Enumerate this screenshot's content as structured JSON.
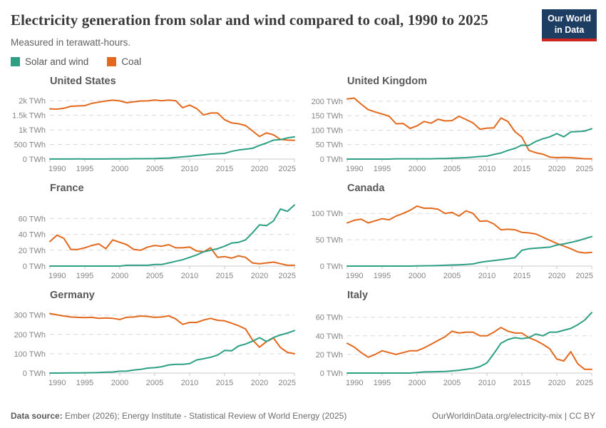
{
  "header": {
    "title": "Electricity generation from solar and wind compared to coal, 1990 to 2025",
    "subtitle": "Measured in terawatt-hours.",
    "logo_line1": "Our World",
    "logo_line2": "in Data",
    "logo_bg_color": "#1d3d63",
    "logo_stripe_color": "#cf2520"
  },
  "legend": [
    {
      "label": "Solar and wind",
      "color": "#2da084"
    },
    {
      "label": "Coal",
      "color": "#e2691d"
    }
  ],
  "footer": {
    "source_label": "Data source:",
    "source_text": "Ember (2026); Energy Institute - Statistical Review of World Energy (2025)",
    "link_text": "OurWorldinData.org/electricity-mix",
    "license_text": " | CC BY"
  },
  "chart_data": {
    "type": "line",
    "title": "Electricity generation from solar and wind compared to coal, 1990 to 2025",
    "subtitle": "Measured in terawatt-hours.",
    "unit": "TWh",
    "grid": "dashed-horizontal",
    "legend_position": "top-left",
    "x_range": [
      1990,
      2025
    ],
    "x_ticks": [
      1990,
      1995,
      2000,
      2005,
      2010,
      2015,
      2020,
      2025
    ],
    "years": [
      1990,
      1991,
      1992,
      1993,
      1994,
      1995,
      1996,
      1997,
      1998,
      1999,
      2000,
      2001,
      2002,
      2003,
      2004,
      2005,
      2006,
      2007,
      2008,
      2009,
      2010,
      2011,
      2012,
      2013,
      2014,
      2015,
      2016,
      2017,
      2018,
      2019,
      2020,
      2021,
      2022,
      2023,
      2024,
      2025
    ],
    "series_colors": {
      "Solar and wind": "#2da084",
      "Coal": "#e2691d"
    },
    "panels": [
      {
        "name": "United States",
        "y_ticks": [
          0,
          500,
          1000,
          1500,
          2000
        ],
        "y_tick_labels": [
          "0 TWh",
          "500 TWh",
          "1k TWh",
          "1.5k TWh",
          "2k TWh"
        ],
        "y_plot_max": 2200,
        "series": [
          {
            "name": "Coal",
            "values": [
              1720,
              1710,
              1740,
              1810,
              1820,
              1830,
              1910,
              1950,
              1990,
              2020,
              1995,
              1930,
              1960,
              1990,
              1995,
              2025,
              2000,
              2025,
              2000,
              1760,
              1850,
              1730,
              1510,
              1580,
              1580,
              1350,
              1240,
              1210,
              1150,
              965,
              773,
              898,
              830,
              675,
              650,
              640
            ]
          },
          {
            "name": "Solar and wind",
            "values": [
              3,
              3,
              3,
              3,
              4,
              3,
              3,
              3,
              3,
              5,
              6,
              7,
              11,
              11,
              14,
              18,
              27,
              35,
              57,
              75,
              96,
              122,
              145,
              172,
              184,
              195,
              264,
              310,
              340,
              370,
              470,
              550,
              650,
              665,
              725,
              760
            ]
          }
        ]
      },
      {
        "name": "United Kingdom",
        "y_ticks": [
          0,
          50,
          100,
          150,
          200
        ],
        "y_tick_labels": [
          "0 TWh",
          "50 TWh",
          "100 TWh",
          "150 TWh",
          "200 TWh"
        ],
        "y_plot_max": 222,
        "series": [
          {
            "name": "Coal",
            "values": [
              208,
              211,
              190,
              171,
              163,
              156,
              148,
              122,
              123,
              106,
              115,
              130,
              124,
              138,
              132,
              133,
              148,
              137,
              125,
              103,
              107,
              108,
              142,
              130,
              95,
              76,
              30,
              22,
              17,
              7,
              5,
              6,
              5,
              3,
              1,
              1
            ]
          },
          {
            "name": "Solar and wind",
            "values": [
              0,
              0,
              0,
              0,
              0,
              0,
              0,
              1,
              1,
              1,
              1,
              1,
              1,
              2,
              2,
              3,
              4,
              5,
              7,
              9,
              10,
              16,
              21,
              30,
              37,
              48,
              47,
              61,
              70,
              77,
              88,
              77,
              94,
              95,
              97,
              105
            ]
          }
        ]
      },
      {
        "name": "France",
        "y_ticks": [
          0,
          20,
          40,
          60
        ],
        "y_tick_labels": [
          "0 TWh",
          "20 TWh",
          "40 TWh",
          "60 TWh"
        ],
        "y_plot_max": 81,
        "series": [
          {
            "name": "Coal",
            "values": [
              31,
              39,
              35,
              21,
              21,
              23,
              26,
              28,
              22,
              33,
              30,
              27,
              21,
              20,
              24,
              26,
              25,
              27,
              23,
              23,
              24,
              19,
              18,
              23,
              11,
              12,
              10,
              13,
              11,
              4,
              3,
              4,
              5,
              3,
              1,
              1
            ]
          },
          {
            "name": "Solar and wind",
            "values": [
              0,
              0,
              0,
              0,
              0,
              0,
              0,
              0,
              0,
              0,
              0,
              1,
              1,
              1,
              1,
              2,
              2,
              4,
              6,
              8,
              11,
              14,
              18,
              20,
              22,
              25,
              29,
              30,
              33,
              42,
              52,
              51,
              57,
              72,
              69,
              77
            ]
          }
        ]
      },
      {
        "name": "Canada",
        "y_ticks": [
          0,
          50,
          100
        ],
        "y_tick_labels": [
          "0 TWh",
          "50 TWh",
          "100 TWh"
        ],
        "y_plot_max": 122,
        "series": [
          {
            "name": "Coal",
            "values": [
              82,
              87,
              89,
              82,
              86,
              90,
              88,
              95,
              100,
              106,
              114,
              110,
              110,
              108,
              100,
              102,
              95,
              105,
              100,
              85,
              86,
              80,
              69,
              70,
              69,
              64,
              63,
              61,
              55,
              49,
              43,
              38,
              33,
              27,
              25,
              26
            ]
          },
          {
            "name": "Solar and wind",
            "values": [
              0,
              0,
              0,
              0,
              0,
              0,
              0,
              0,
              0,
              0,
              0.3,
              0.5,
              0.7,
              1,
              1.5,
              2,
              2.5,
              3,
              4,
              7,
              9,
              10.5,
              12,
              14,
              16,
              30,
              33,
              34,
              35,
              36,
              40,
              42,
              45,
              48,
              52,
              56
            ]
          }
        ]
      },
      {
        "name": "Germany",
        "y_ticks": [
          0,
          100,
          200,
          300
        ],
        "y_tick_labels": [
          "0 TWh",
          "100 TWh",
          "200 TWh",
          "300 TWh"
        ],
        "y_plot_max": 332,
        "series": [
          {
            "name": "Coal",
            "values": [
              308,
              301,
              295,
              290,
              288,
              287,
              288,
              283,
              285,
              283,
              277,
              289,
              290,
              295,
              293,
              288,
              290,
              296,
              280,
              252,
              262,
              262,
              274,
              283,
              273,
              270,
              258,
              245,
              228,
              171,
              134,
              163,
              181,
              132,
              107,
              100
            ]
          },
          {
            "name": "Solar and wind",
            "values": [
              0,
              0.1,
              0.3,
              0.6,
              0.9,
              1.5,
              2,
              3,
              4.5,
              5.5,
              9.5,
              10.5,
              16,
              19,
              26,
              28,
              33,
              42,
              45,
              45,
              49,
              68,
              74,
              82,
              93,
              117,
              115,
              140,
              150,
              165,
              183,
              163,
              184,
              197,
              207,
              220
            ]
          }
        ]
      },
      {
        "name": "Italy",
        "y_ticks": [
          0,
          20,
          40,
          60
        ],
        "y_tick_labels": [
          "0 TWh",
          "20 TWh",
          "40 TWh",
          "60 TWh"
        ],
        "y_plot_max": 69,
        "series": [
          {
            "name": "Coal",
            "values": [
              32,
              28,
              22,
              17,
              20,
              24,
              22,
              20,
              22,
              24,
              24,
              27,
              31,
              35,
              39,
              45,
              43,
              44,
              44,
              40,
              40,
              44,
              49,
              45,
              43,
              43,
              38,
              35,
              31,
              26,
              15,
              13,
              23,
              10,
              4,
              4
            ]
          },
          {
            "name": "Solar and wind",
            "values": [
              0,
              0,
              0,
              0,
              0,
              0,
              0,
              0,
              0,
              0,
              0.6,
              1.2,
              1.4,
              1.5,
              1.8,
              2.3,
              3,
              4,
              5,
              7,
              11,
              21,
              32,
              36,
              38,
              37,
              38,
              42,
              40,
              44,
              44,
              46,
              48,
              52,
              57,
              65
            ]
          }
        ]
      }
    ]
  }
}
